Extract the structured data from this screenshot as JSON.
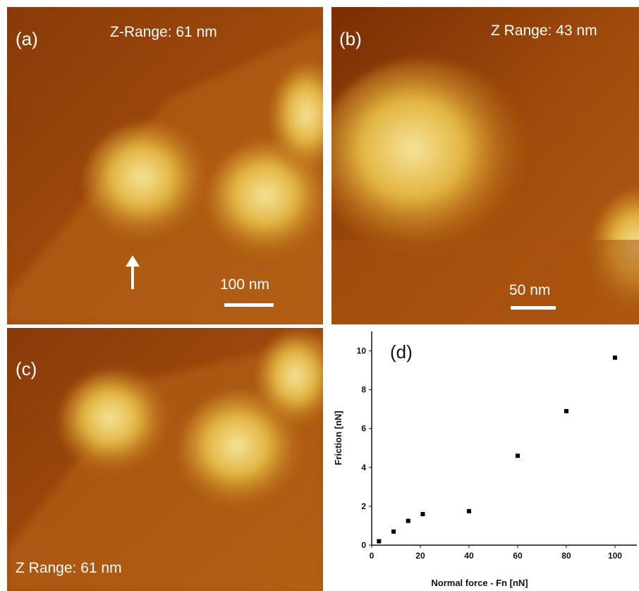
{
  "panels": [
    {
      "label": "(a)",
      "z_range": "Z-Range: 61 nm",
      "scale_bar": "100 nm"
    },
    {
      "label": "(b)",
      "z_range": "Z Range: 43 nm",
      "scale_bar": "50 nm"
    },
    {
      "label": "(c)",
      "z_range": "Z Range: 61 nm"
    }
  ],
  "chart_data": {
    "type": "scatter",
    "label": "(d)",
    "x_label": "Normal force - Fn [nN]",
    "y_label": "Friction [nN]",
    "x": [
      3,
      9,
      15,
      21,
      40,
      60,
      80,
      100
    ],
    "values": [
      0.2,
      0.7,
      1.25,
      1.6,
      1.75,
      4.6,
      6.9,
      9.65
    ],
    "color": "#000000",
    "xlim": [
      0,
      109
    ],
    "ylim": [
      0,
      11
    ],
    "xticks": [
      0,
      20,
      40,
      60,
      80,
      100
    ],
    "yticks": [
      0,
      2,
      4,
      6,
      8,
      10
    ]
  }
}
